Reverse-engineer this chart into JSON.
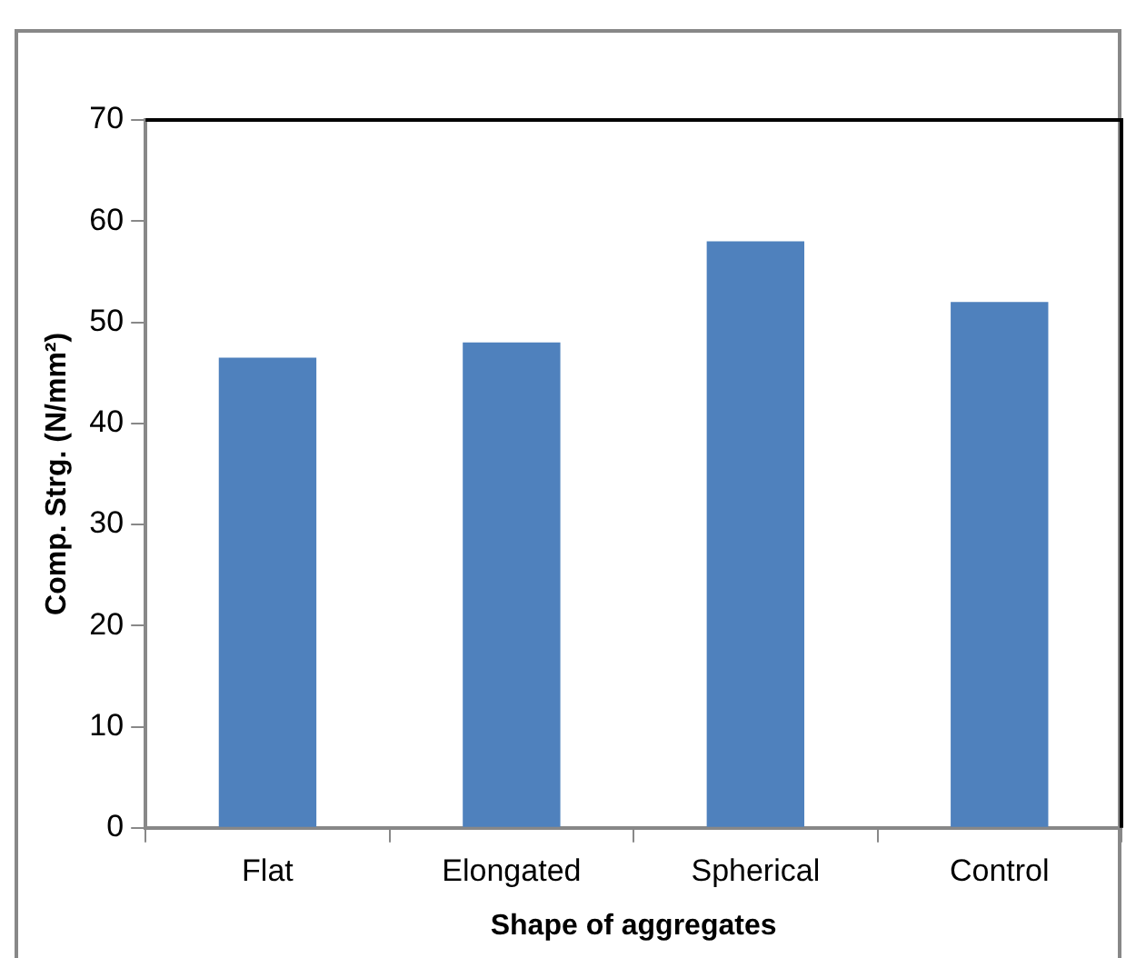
{
  "chart_data": {
    "type": "bar",
    "xlabel": "Shape of aggregates",
    "ylabel": "Comp. Strg. (N/mm²)",
    "categories": [
      "Flat",
      "Elongated",
      "Spherical",
      "Control"
    ],
    "values": [
      46.5,
      48,
      58,
      52
    ],
    "color": "#4f81bd",
    "ylim": [
      0,
      70
    ],
    "yticks": [
      0,
      10,
      20,
      30,
      40,
      50,
      60,
      70
    ],
    "grid": false,
    "legend": false
  }
}
